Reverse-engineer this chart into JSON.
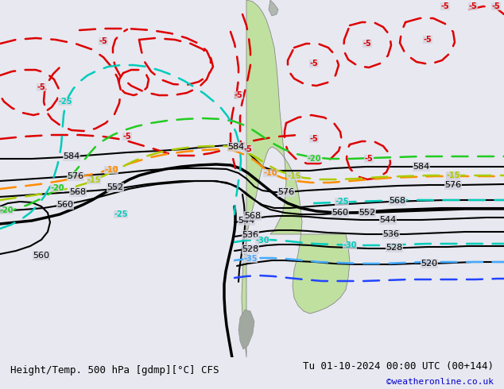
{
  "title_left": "Height/Temp. 500 hPa [gdmp][°C] CFS",
  "title_right": "Tu 01-10-2024 00:00 UTC (00+144)",
  "credit": "©weatheronline.co.uk",
  "bg_color": "#d4d4e0",
  "sa_land_color": "#c0e0a0",
  "bottom_bar_color": "#e8e8f0",
  "font_size_title": 9,
  "font_size_credit": 8
}
